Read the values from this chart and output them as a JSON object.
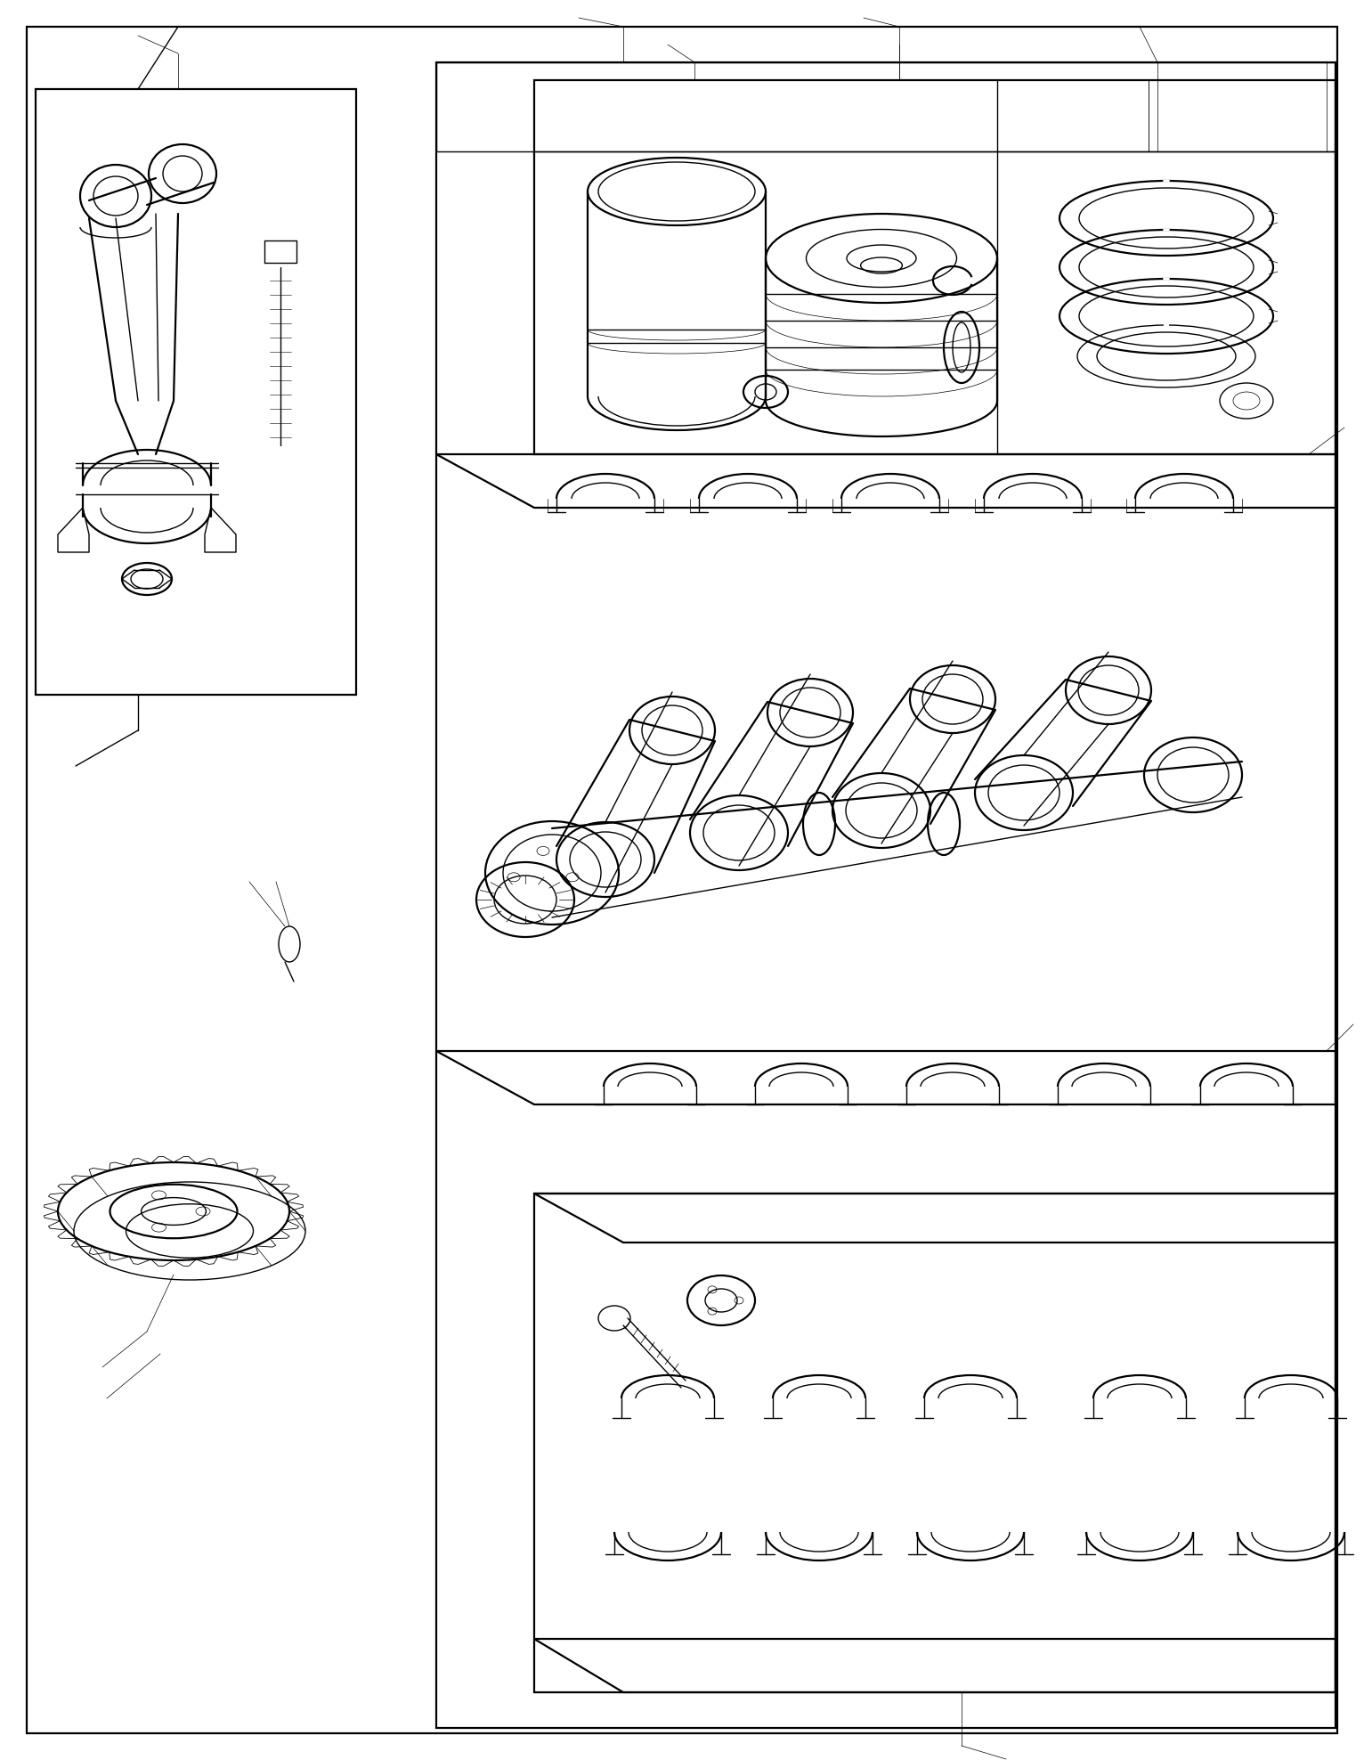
{
  "bg_color": "#ffffff",
  "line_color": "#000000",
  "fig_width": 15.32,
  "fig_height": 19.76,
  "lw_thin": 0.5,
  "lw_med": 1.0,
  "lw_thick": 1.6,
  "lw_xthick": 2.2
}
